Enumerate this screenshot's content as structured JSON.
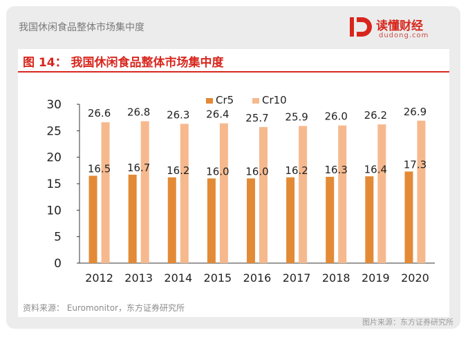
{
  "header": {
    "title": "我国休闲食品整体市场集中度",
    "brand_name": "读懂财经",
    "brand_domain": "dudong.com",
    "brand_color": "#d8261d"
  },
  "figure": {
    "title": "图 14：  我国休闲食品整体市场集中度",
    "source": "资料来源： Euromonitor，东方证券研究所",
    "credit": "图片来源：东方证券研究所"
  },
  "chart_data": {
    "type": "bar",
    "categories": [
      "2012",
      "2013",
      "2014",
      "2015",
      "2016",
      "2017",
      "2018",
      "2019",
      "2020"
    ],
    "series": [
      {
        "name": "Cr5",
        "color": "#e38a36",
        "values": [
          16.5,
          16.7,
          16.2,
          16.0,
          16.0,
          16.2,
          16.3,
          16.4,
          17.3
        ]
      },
      {
        "name": "Cr10",
        "color": "#f6b98e",
        "values": [
          26.6,
          26.8,
          26.3,
          26.4,
          25.7,
          25.9,
          26.0,
          26.2,
          26.9
        ]
      }
    ],
    "data_labels": {
      "Cr5": [
        "16.5",
        "16.7",
        "16.2",
        "16.0",
        "16.0",
        "16.2",
        "16.3",
        "16.4",
        "17.3"
      ],
      "Cr10": [
        "26.6",
        "26.8",
        "26.3",
        "26.4",
        "25.7",
        "25.9",
        "26.0",
        "26.2",
        "26.9"
      ]
    },
    "ylim": [
      0,
      30
    ],
    "yticks": [
      "0",
      "5",
      "10",
      "15",
      "20",
      "25",
      "30"
    ],
    "title": "",
    "xlabel": "",
    "ylabel": "",
    "grid": false,
    "legend_position": "top-center"
  }
}
